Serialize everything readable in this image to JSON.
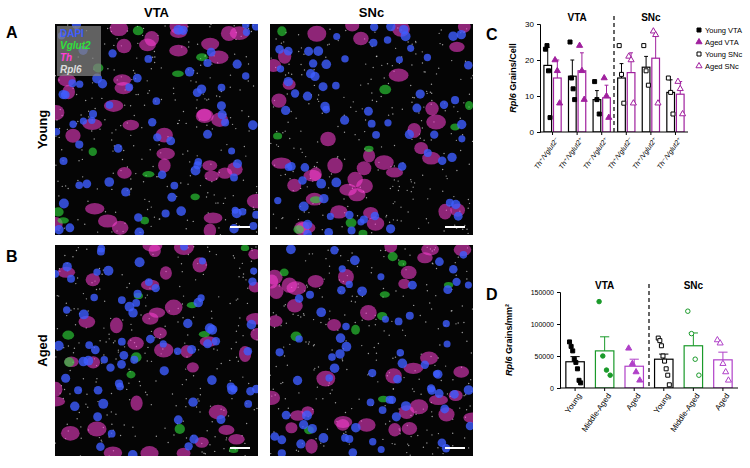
{
  "figure": {
    "panels": [
      "A",
      "B",
      "C",
      "D"
    ],
    "images": {
      "columns": [
        "VTA",
        "SNc"
      ],
      "rows": [
        "Young",
        "Aged"
      ],
      "channels": [
        {
          "name": "DAPI",
          "color": "#3d5cff"
        },
        {
          "name": "Vglut2",
          "color": "#2fe03a"
        },
        {
          "name": "Th",
          "color": "#ff40d6"
        },
        {
          "name": "Rpl6",
          "color": "#dddddd"
        }
      ]
    }
  },
  "chart_data": [
    {
      "type": "bar",
      "y_label": "Rpl6 Grains/Cell",
      "group_labels": [
        "VTA",
        "SNc"
      ],
      "categories": [
        "Th⁺/Vglut2⁻",
        "Th⁺/Vglut2⁺",
        "Th⁻/Vglut2⁺",
        "Th⁺/Vglut2⁻",
        "Th⁺/Vglut2⁺",
        "Th⁻/Vglut2⁺"
      ],
      "series": [
        {
          "name": "Young VTA",
          "color": "#000000",
          "marker": "square",
          "values": [
            18.5,
            15.5,
            9,
            null,
            null,
            null
          ],
          "errors": [
            5,
            4.5,
            2.5,
            null,
            null,
            null
          ],
          "points": [
            [
              23,
              24,
              17,
              4
            ],
            [
              25,
              15,
              12,
              9
            ],
            [
              14,
              9,
              5
            ],
            null,
            null,
            null
          ]
        },
        {
          "name": "Aged VTA",
          "color": "#a0209e",
          "marker": "triangle",
          "values": [
            15,
            17,
            9.5,
            null,
            null,
            null
          ],
          "errors": [
            5,
            5,
            3.5,
            null,
            null,
            null
          ],
          "points": [
            [
              20,
              17,
              8
            ],
            [
              24,
              17,
              9
            ],
            [
              15,
              10,
              4
            ],
            null,
            null,
            null
          ]
        },
        {
          "name": "Young SNc",
          "color": "#000000",
          "marker": "open-square",
          "values": [
            null,
            null,
            null,
            15,
            18,
            11
          ],
          "errors": [
            null,
            null,
            null,
            4,
            3,
            3.5
          ],
          "points": [
            null,
            null,
            null,
            [
              24,
              16,
              8
            ],
            [
              24,
              17,
              13
            ],
            [
              15,
              11,
              5
            ]
          ]
        },
        {
          "name": "Aged SNc",
          "color": "#a0209e",
          "marker": "open-triangle",
          "values": [
            null,
            null,
            null,
            16.5,
            20.5,
            10.5
          ],
          "errors": [
            null,
            null,
            null,
            5.5,
            6.5,
            3.5
          ],
          "points": [
            null,
            null,
            null,
            [
              21,
              20,
              8
            ],
            [
              28,
              27,
              8
            ],
            [
              14,
              12,
              5
            ]
          ]
        }
      ],
      "ylim": [
        0,
        30
      ],
      "yticks": [
        0,
        10,
        20,
        30
      ],
      "legend": "right"
    },
    {
      "type": "bar",
      "y_label": "Rpl6 Grains/mm²",
      "group_labels": [
        "VTA",
        "SNc"
      ],
      "categories": [
        "Young",
        "Middle-Aged",
        "Aged",
        "Young",
        "Middle-Aged",
        "Aged"
      ],
      "values": [
        41000,
        58000,
        34000,
        45000,
        66000,
        44000
      ],
      "errors": [
        8000,
        22000,
        11000,
        8000,
        20000,
        12000
      ],
      "colors": [
        "#000000",
        "#1a9a2a",
        "#b040c8",
        "#000000",
        "#1a9a2a",
        "#b040c8"
      ],
      "points": [
        [
          72000,
          65000,
          58000,
          45000,
          40000,
          30000,
          12000,
          8000
        ],
        [
          135000,
          50000,
          28000,
          20000
        ],
        [
          62000,
          38000,
          25000,
          12000
        ],
        [
          78000,
          74000,
          66000,
          50000,
          42000,
          30000,
          20000,
          5000
        ],
        [
          120000,
          85000,
          45000,
          20000
        ],
        [
          75000,
          70000,
          38000,
          25000,
          12000
        ]
      ],
      "ylim": [
        0,
        150000
      ],
      "yticks": [
        0,
        50000,
        100000,
        150000
      ]
    }
  ]
}
